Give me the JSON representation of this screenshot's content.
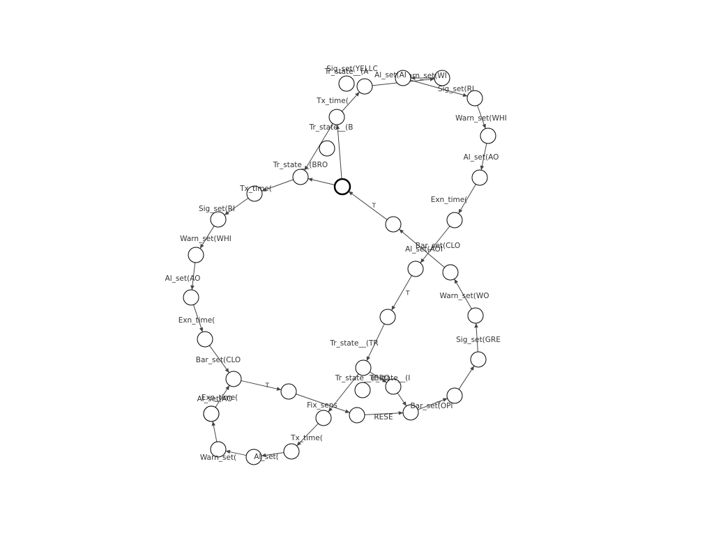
{
  "diagram": {
    "initial_node": "n0",
    "colors": {
      "initial_fill": "#f4b9b0",
      "node_fill": "#ffffff",
      "stroke": "#000000",
      "edge": "#444444"
    },
    "nodes": [
      {
        "id": "n0",
        "label": ""
      },
      {
        "id": "n1",
        "label": "Tr_state__(BRO"
      },
      {
        "id": "n2",
        "label": "Tx_time("
      },
      {
        "id": "n3",
        "label": "Sig_set(RI"
      },
      {
        "id": "n4",
        "label": "Warn_set(WHI"
      },
      {
        "id": "n5",
        "label": "Al_set(AO"
      },
      {
        "id": "n6",
        "label": "Exn_time("
      },
      {
        "id": "n7",
        "label": "Bar_set(CLO"
      },
      {
        "id": "n8",
        "label": ""
      },
      {
        "id": "n9",
        "label": "Fix_sens"
      },
      {
        "id": "n10",
        "label": "RESE"
      },
      {
        "id": "n11",
        "label": "Bar_set(OPI"
      },
      {
        "id": "n12",
        "label": ""
      },
      {
        "id": "n13",
        "label": "Sig_set(GRE"
      },
      {
        "id": "n14",
        "label": "Warn_set(WO"
      },
      {
        "id": "n15",
        "label": "Bar_set(CLO"
      },
      {
        "id": "n16",
        "label": ""
      },
      {
        "id": "n17",
        "label": "Exn_time("
      },
      {
        "id": "n18",
        "label": "Al_set(AO"
      },
      {
        "id": "n19",
        "label": "Warn_set(WHI"
      },
      {
        "id": "n20",
        "label": "Sig_set(RI"
      },
      {
        "id": "n21",
        "label": "Warn_set(WI"
      },
      {
        "id": "n22",
        "label": "Al_set(AI"
      },
      {
        "id": "n23",
        "label": "Sig_set(YELLC"
      },
      {
        "id": "n24",
        "label": "Tr_state__(A"
      },
      {
        "id": "n25",
        "label": "Tx_time("
      },
      {
        "id": "n26",
        "label": "Tr_state__(B"
      },
      {
        "id": "n27",
        "label": "Al_set(AOI"
      },
      {
        "id": "n28",
        "label": ""
      },
      {
        "id": "n29",
        "label": "Tr_state__(TR"
      },
      {
        "id": "n30",
        "label": "Tr_state__(I"
      },
      {
        "id": "n31",
        "label": "Tr_state__(BRO"
      },
      {
        "id": "n32",
        "label": "Tx_time("
      },
      {
        "id": "n33",
        "label": "Warn_set("
      },
      {
        "id": "n34",
        "label": "Al_set("
      },
      {
        "id": "n35",
        "label": "Al_set(AO"
      },
      {
        "id": "n36",
        "label": "Exn_time("
      },
      {
        "id": "n37",
        "label": ""
      }
    ],
    "edges": [
      {
        "from": "n0",
        "to": "n1",
        "label": ""
      },
      {
        "from": "n1",
        "to": "n2",
        "label": ""
      },
      {
        "from": "n2",
        "to": "n3",
        "label": ""
      },
      {
        "from": "n3",
        "to": "n4",
        "label": ""
      },
      {
        "from": "n4",
        "to": "n5",
        "label": ""
      },
      {
        "from": "n5",
        "to": "n6",
        "label": ""
      },
      {
        "from": "n6",
        "to": "n7",
        "label": ""
      },
      {
        "from": "n7",
        "to": "n8",
        "label": "T"
      },
      {
        "from": "n8",
        "to": "n10",
        "label": ""
      },
      {
        "from": "n10",
        "to": "n11",
        "label": ""
      },
      {
        "from": "n11",
        "to": "n12",
        "label": "T"
      },
      {
        "from": "n12",
        "to": "n13",
        "label": ""
      },
      {
        "from": "n13",
        "to": "n14",
        "label": ""
      },
      {
        "from": "n14",
        "to": "n15",
        "label": ""
      },
      {
        "from": "n15",
        "to": "n16",
        "label": ""
      },
      {
        "from": "n16",
        "to": "n0",
        "label": "T"
      },
      {
        "from": "n0",
        "to": "n25",
        "label": ""
      },
      {
        "from": "n25",
        "to": "n23",
        "label": ""
      },
      {
        "from": "n23",
        "to": "n21",
        "label": ""
      },
      {
        "from": "n21",
        "to": "n22",
        "label": ""
      },
      {
        "from": "n22",
        "to": "n20",
        "label": ""
      },
      {
        "from": "n20",
        "to": "n19",
        "label": ""
      },
      {
        "from": "n19",
        "to": "n18",
        "label": ""
      },
      {
        "from": "n18",
        "to": "n17",
        "label": ""
      },
      {
        "from": "n17",
        "to": "n27",
        "label": ""
      },
      {
        "from": "n27",
        "to": "n28",
        "label": "T"
      },
      {
        "from": "n28",
        "to": "n29",
        "label": ""
      },
      {
        "from": "n29",
        "to": "n30",
        "label": ""
      },
      {
        "from": "n30",
        "to": "n11",
        "label": ""
      },
      {
        "from": "n29",
        "to": "n9",
        "label": ""
      },
      {
        "from": "n9",
        "to": "n32",
        "label": ""
      },
      {
        "from": "n32",
        "to": "n34",
        "label": ""
      },
      {
        "from": "n34",
        "to": "n33",
        "label": ""
      },
      {
        "from": "n33",
        "to": "n35",
        "label": ""
      },
      {
        "from": "n35",
        "to": "n36",
        "label": ""
      },
      {
        "from": "n36",
        "to": "n7",
        "label": ""
      },
      {
        "from": "n25",
        "to": "n1",
        "label": ""
      }
    ]
  }
}
